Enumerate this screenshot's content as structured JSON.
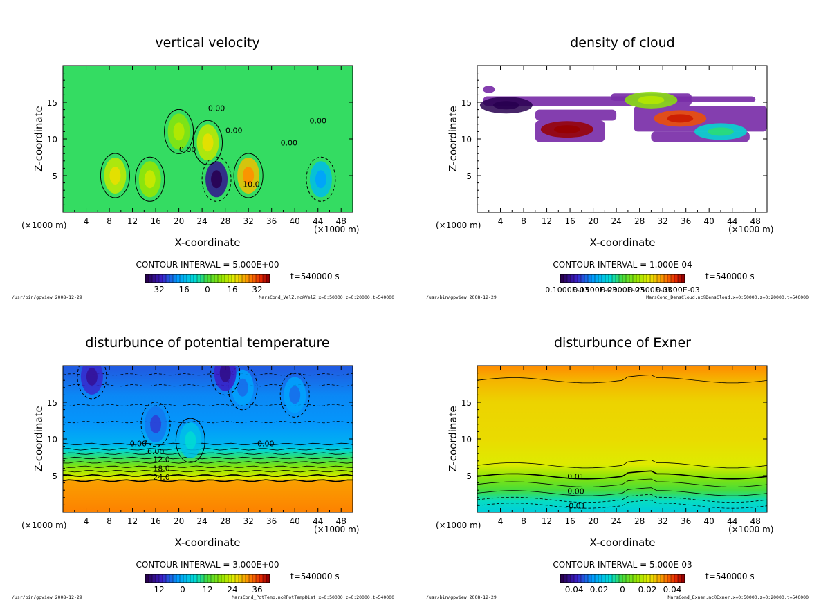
{
  "x_axis_title": "X-coordinate",
  "z_axis_title": "Z-coordinate",
  "unit_label": "(×1000 m)",
  "time_label": "t=540000 s",
  "program_path": "/usr/bin/gpview",
  "program_date": "2008-12-29",
  "chart_data": [
    {
      "id": "vel",
      "type": "heatmap",
      "title": "vertical velocity",
      "contour_interval": "CONTOUR INTERVAL = 5.000E+00",
      "footer_right": "MarsCond_VelZ.nc@VelZ,x=0:50000,z=0:20000,t=540000",
      "xlim": [
        0,
        50
      ],
      "ylim": [
        0,
        20
      ],
      "x_ticks": [
        "4",
        "8",
        "12",
        "16",
        "20",
        "24",
        "28",
        "32",
        "36",
        "40",
        "44",
        "48"
      ],
      "y_ticks": [
        "5",
        "10",
        "15"
      ],
      "colorbar_range": [
        -40,
        40
      ],
      "colorbar_ticks": [
        "-32",
        "-16",
        "0",
        "16",
        "32"
      ],
      "contour_labels": [
        "0.00",
        "0.00",
        "0.00",
        "0.00",
        "0.00",
        "10.0"
      ],
      "features": [
        {
          "x": 26.5,
          "z": 4.5,
          "value": -35
        },
        {
          "x": 25,
          "z": 9.5,
          "value": 14
        },
        {
          "x": 32,
          "z": 5,
          "value": 22
        },
        {
          "x": 9,
          "z": 5,
          "value": 14
        },
        {
          "x": 15,
          "z": 4.5,
          "value": 10
        },
        {
          "x": 44.5,
          "z": 4.5,
          "value": -14
        },
        {
          "x": 20,
          "z": 11,
          "value": 8
        }
      ]
    },
    {
      "id": "cloud",
      "type": "heatmap",
      "title": "density of cloud",
      "contour_interval": "CONTOUR INTERVAL = 1.000E-04",
      "footer_right": "MarsCond_DensCloud.nc@DensCloud,x=0:50000,z=0:20000,t=540000",
      "xlim": [
        0,
        50
      ],
      "ylim": [
        0,
        20
      ],
      "x_ticks": [
        "4",
        "8",
        "12",
        "16",
        "20",
        "24",
        "28",
        "32",
        "36",
        "40",
        "44",
        "48"
      ],
      "y_ticks": [
        "5",
        "10",
        "15"
      ],
      "colorbar_range": [
        0.0001,
        0.0003
      ],
      "colorbar_ticks": [
        "0.1000E-03",
        "0.1500E-03",
        "0.2000E-03",
        "0.2500E-03",
        "0.3000E-03"
      ],
      "cloud_bands": [
        {
          "x_from": 1,
          "x_to": 3,
          "z_from": 16.3,
          "z_to": 17.2
        },
        {
          "x_from": 1,
          "x_to": 37,
          "z_from": 14.5,
          "z_to": 15.8
        },
        {
          "x_from": 10,
          "x_to": 24,
          "z_from": 12.5,
          "z_to": 14.0
        },
        {
          "x_from": 10,
          "x_to": 22,
          "z_from": 9.6,
          "z_to": 12.5
        },
        {
          "x_from": 23,
          "x_to": 37,
          "z_from": 15.2,
          "z_to": 16.2
        },
        {
          "x_from": 31,
          "x_to": 48,
          "z_from": 15.0,
          "z_to": 15.8
        },
        {
          "x_from": 27,
          "x_to": 50,
          "z_from": 11.0,
          "z_to": 14.5
        },
        {
          "x_from": 30,
          "x_to": 47,
          "z_from": 9.6,
          "z_to": 11.0
        }
      ],
      "features": [
        {
          "x": 15.5,
          "z": 11.3,
          "value": 0.00032
        },
        {
          "x": 35,
          "z": 12.8,
          "value": 0.00028
        },
        {
          "x": 30,
          "z": 15.3,
          "value": 0.00022
        },
        {
          "x": 42,
          "z": 11,
          "value": 0.00018
        },
        {
          "x": 5,
          "z": 14.6,
          "value": 8e-05
        }
      ]
    },
    {
      "id": "pt",
      "type": "heatmap",
      "title": "disturbunce of potential temperature",
      "contour_interval": "CONTOUR INTERVAL = 3.000E+00",
      "footer_right": "MarsCond_PotTemp.nc@PotTempDist,x=0:50000,z=0:20000,t=540000",
      "xlim": [
        0,
        50
      ],
      "ylim": [
        0,
        20
      ],
      "x_ticks": [
        "4",
        "8",
        "12",
        "16",
        "20",
        "24",
        "28",
        "32",
        "36",
        "40",
        "44",
        "48"
      ],
      "y_ticks": [
        "5",
        "10",
        "15"
      ],
      "colorbar_range": [
        -18,
        42
      ],
      "colorbar_ticks": [
        "-12",
        "0",
        "12",
        "24",
        "36"
      ],
      "contour_labels": [
        "0.00",
        "0.00",
        "6.00",
        "12.0",
        "18.0",
        "24.0"
      ],
      "profile": [
        {
          "z": 0,
          "value": 33
        },
        {
          "z": 4.2,
          "value": 31
        },
        {
          "z": 4.6,
          "value": 25
        },
        {
          "z": 5.5,
          "value": 21
        },
        {
          "z": 6.5,
          "value": 16
        },
        {
          "z": 7.5,
          "value": 10
        },
        {
          "z": 8.5,
          "value": 5
        },
        {
          "z": 9.3,
          "value": 0
        },
        {
          "z": 12,
          "value": -3
        },
        {
          "z": 16,
          "value": -4
        },
        {
          "z": 18.5,
          "value": -6
        },
        {
          "z": 20,
          "value": -7
        }
      ],
      "features": [
        {
          "x": 31,
          "z": 17,
          "value": -2
        },
        {
          "x": 40,
          "z": 16,
          "value": -2
        },
        {
          "x": 5,
          "z": 18.5,
          "value": -10
        },
        {
          "x": 28,
          "z": 19,
          "value": -11
        },
        {
          "x": 16,
          "z": 12,
          "value": -5
        },
        {
          "x": 22,
          "z": 9.8,
          "value": 2
        }
      ]
    },
    {
      "id": "exner",
      "type": "heatmap",
      "title": "disturbunce of Exner",
      "contour_interval": "CONTOUR INTERVAL = 5.000E-03",
      "footer_right": "MarsCond_Exner.nc@Exner,x=0:50000,z=0:20000,t=540000",
      "xlim": [
        0,
        50
      ],
      "ylim": [
        0,
        20
      ],
      "x_ticks": [
        "4",
        "8",
        "12",
        "16",
        "20",
        "24",
        "28",
        "32",
        "36",
        "40",
        "44",
        "48"
      ],
      "y_ticks": [
        "5",
        "10",
        "15"
      ],
      "colorbar_range": [
        -0.05,
        0.05
      ],
      "colorbar_ticks": [
        "-0.04",
        "-0.02",
        "0",
        "0.02",
        "0.04"
      ],
      "contour_labels": [
        "0.01",
        "0.00",
        "-0.01"
      ],
      "profile": [
        {
          "z": 0,
          "value": -0.013
        },
        {
          "z": 1.5,
          "value": -0.009
        },
        {
          "z": 3,
          "value": 0.0
        },
        {
          "z": 4.8,
          "value": 0.01
        },
        {
          "z": 6.5,
          "value": 0.021
        },
        {
          "z": 10,
          "value": 0.024
        },
        {
          "z": 15,
          "value": 0.025
        },
        {
          "z": 18,
          "value": 0.029
        },
        {
          "z": 20,
          "value": 0.034
        }
      ]
    }
  ]
}
